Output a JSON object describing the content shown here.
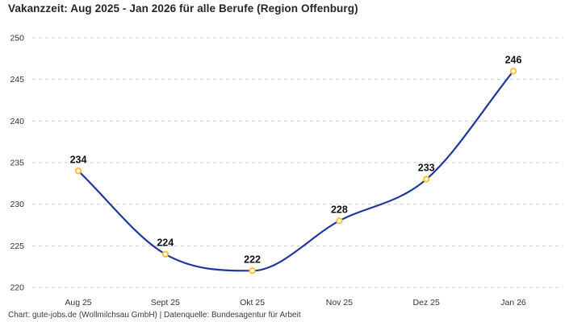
{
  "title": "Vakanzzeit: Aug 2025 - Jan 2026 für alle Berufe (Region Offenburg)",
  "footer": "Chart: gute-jobs.de (Wollmilchsau GmbH) | Datenquelle: Bundesagentur für Arbeit",
  "colors": {
    "line": "#21379f",
    "marker_stroke": "#f7c331",
    "marker_fill": "#ffffff",
    "gridline": "#cccccc",
    "tick_text": "#333333",
    "point_label_text": "#111111",
    "background": "#ffffff"
  },
  "chart_data": {
    "type": "line",
    "title": "Vakanzzeit: Aug 2025 - Jan 2026 für alle Berufe (Region Offenburg)",
    "categories": [
      "Aug 25",
      "Sept 25",
      "Okt 25",
      "Nov 25",
      "Dez 25",
      "Jan 26"
    ],
    "values": [
      234,
      224,
      222,
      228,
      233,
      246
    ],
    "point_labels": [
      "234",
      "224",
      "222",
      "228",
      "233",
      "246"
    ],
    "xlabel": "",
    "ylabel": "",
    "ylim": [
      220,
      250
    ],
    "yticks": [
      220,
      225,
      230,
      235,
      240,
      245,
      250
    ],
    "grid": "horizontal-dashed",
    "legend": "none",
    "line_style": "smooth",
    "marker": "open-circle"
  }
}
